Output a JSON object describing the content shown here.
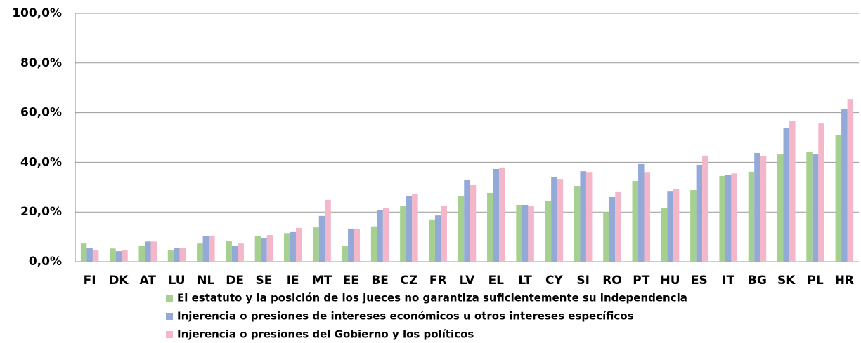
{
  "chart_data": {
    "type": "bar",
    "categories": [
      "FI",
      "DK",
      "AT",
      "LU",
      "NL",
      "DE",
      "SE",
      "IE",
      "MT",
      "EE",
      "BE",
      "CZ",
      "FR",
      "LV",
      "EL",
      "LT",
      "CY",
      "SI",
      "RO",
      "PT",
      "HU",
      "ES",
      "IT",
      "BG",
      "SK",
      "PL",
      "HR"
    ],
    "series": [
      {
        "name": "El estatuto y la posición de los jueces no garantiza suficientemente su independencia",
        "color": "#a6d08f",
        "values": [
          7.3,
          5.3,
          6.4,
          4.5,
          7.3,
          8.2,
          10.2,
          11.5,
          13.8,
          6.5,
          14.2,
          22.3,
          17.0,
          26.5,
          27.7,
          22.9,
          24.3,
          30.5,
          20.0,
          32.5,
          21.5,
          28.8,
          34.5,
          36.2,
          43.2,
          44.3,
          51.1
        ]
      },
      {
        "name": "Injerencia o presiones de intereses económicos u otros intereses específicos",
        "color": "#93a9d8",
        "values": [
          5.4,
          4.2,
          8.1,
          5.6,
          10.2,
          6.5,
          9.3,
          11.9,
          18.4,
          13.3,
          20.9,
          26.5,
          18.6,
          32.8,
          37.3,
          22.9,
          34.0,
          36.4,
          26.0,
          39.3,
          28.2,
          39.0,
          34.8,
          43.8,
          53.8,
          43.2,
          61.5
        ]
      },
      {
        "name": "Injerencia o presiones del Gobierno y los políticos",
        "color": "#f4b6c9",
        "values": [
          4.5,
          4.8,
          8.1,
          5.6,
          10.5,
          7.3,
          10.7,
          13.6,
          24.9,
          13.3,
          21.5,
          27.1,
          22.6,
          30.8,
          37.9,
          22.3,
          33.3,
          36.1,
          28.0,
          36.1,
          29.4,
          42.7,
          35.5,
          42.4,
          56.5,
          55.6,
          65.5
        ]
      }
    ],
    "ylim": [
      0,
      100
    ],
    "yticks": [
      {
        "value": 0,
        "label": "0,0%"
      },
      {
        "value": 20,
        "label": "20,0%"
      },
      {
        "value": 40,
        "label": "40,0%"
      },
      {
        "value": 60,
        "label": "60,0%"
      },
      {
        "value": 80,
        "label": "80,0%"
      },
      {
        "value": 100,
        "label": "100,0%"
      }
    ],
    "grid": true
  }
}
